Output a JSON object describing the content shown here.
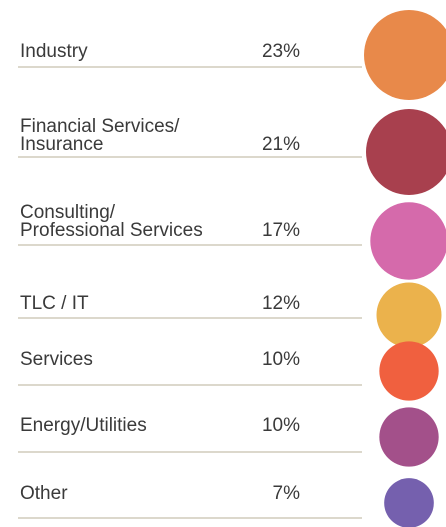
{
  "chart_data": {
    "type": "bubble",
    "categories": [
      [
        "Industry"
      ],
      [
        "Financial Services/",
        "Insurance"
      ],
      [
        "Consulting/",
        "Professional Services"
      ],
      [
        "TLC / IT"
      ],
      [
        "Services"
      ],
      [
        "Energy/Utilities"
      ],
      [
        "Other"
      ]
    ],
    "values": [
      23,
      21,
      17,
      12,
      10,
      10,
      7
    ],
    "value_labels": [
      "23%",
      "21%",
      "17%",
      "12%",
      "10%",
      "10%",
      "7%"
    ],
    "colors": [
      "#e8894a",
      "#a8404e",
      "#d56aab",
      "#ebb24c",
      "#f0603f",
      "#a3508a",
      "#7560ae"
    ]
  }
}
